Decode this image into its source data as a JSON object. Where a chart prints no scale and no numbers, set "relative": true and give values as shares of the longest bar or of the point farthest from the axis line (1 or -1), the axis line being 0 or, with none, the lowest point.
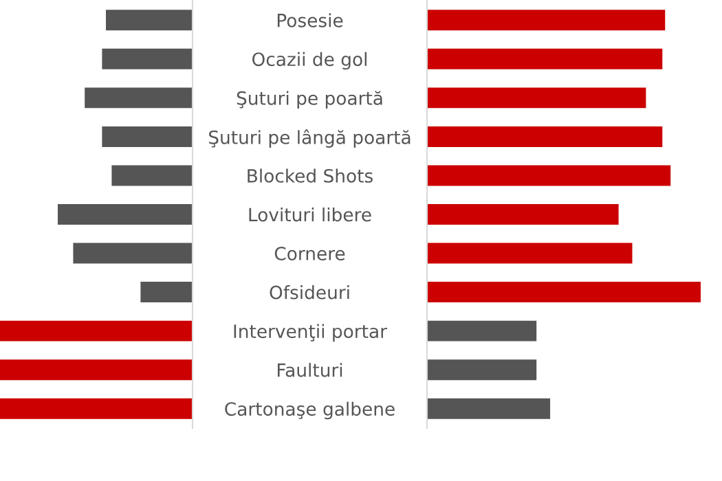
{
  "chart_data": [
    {
      "type": "bar",
      "orientation": "horizontal",
      "relative": true,
      "categories": [
        null,
        null,
        null,
        null,
        null,
        null,
        null,
        null,
        null,
        null,
        null
      ],
      "values": [
        -0.45,
        -0.47,
        -0.56,
        -0.47,
        -0.42,
        -0.7,
        -0.62,
        -0.27,
        -1,
        -1,
        -1
      ],
      "colors": [
        "#555555",
        "#555555",
        "#555555",
        "#555555",
        "#555555",
        "#555555",
        "#555555",
        "#555555",
        "#cc0000",
        "#cc0000",
        "#cc0000"
      ]
    },
    {
      "type": "bar",
      "orientation": "horizontal",
      "relative": true,
      "tick_labels": "y",
      "categories": [
        "Posesie",
        "Ocazii de gol",
        "Şuturi pe poartă",
        "Şuturi pe lângă poartă",
        "Blocked Shots",
        "Lovituri libere",
        "Cornere",
        "Ofsideuri",
        "Intervenţii portar",
        "Faulturi",
        "Cartonaşe galbene"
      ],
      "values": [
        0.87,
        0.86,
        0.8,
        0.86,
        0.89,
        0.7,
        0.75,
        1,
        0.4,
        0.4,
        0.45
      ],
      "colors": [
        "#cc0000",
        "#cc0000",
        "#cc0000",
        "#cc0000",
        "#cc0000",
        "#cc0000",
        "#cc0000",
        "#cc0000",
        "#555555",
        "#555555",
        "#555555"
      ]
    }
  ]
}
